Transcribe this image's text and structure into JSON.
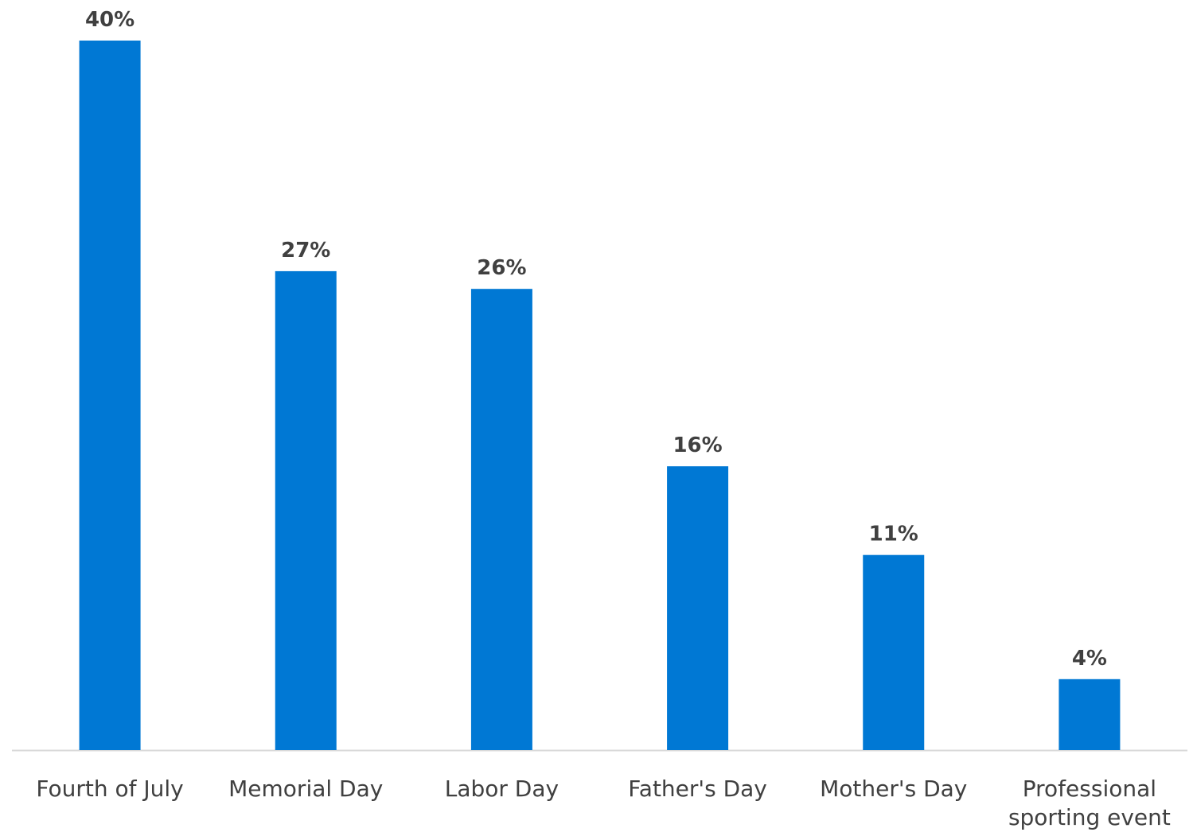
{
  "chart_data": {
    "type": "bar",
    "categories": [
      "Fourth of July",
      "Memorial Day",
      "Labor Day",
      "Father's Day",
      "Mother's Day",
      "Professional sporting event"
    ],
    "values": [
      40,
      27,
      26,
      16,
      11,
      4
    ],
    "value_labels": [
      "40%",
      "27%",
      "26%",
      "16%",
      "11%",
      "4%"
    ],
    "color": "#0078d4"
  }
}
